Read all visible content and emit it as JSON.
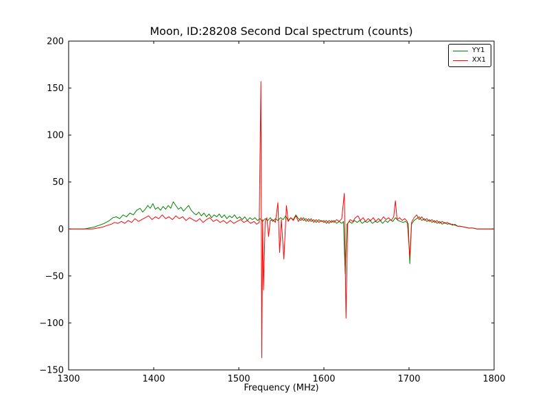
{
  "figure": {
    "title": "Moon, ID:28208 Second Dcal spectrum (counts)",
    "xlabel": "Frequency (MHz)"
  },
  "legend": {
    "position": "upper right",
    "entries": [
      {
        "label": "YY1",
        "color": "#008000"
      },
      {
        "label": "XX1",
        "color": "#ff0000"
      }
    ]
  },
  "chart_data": {
    "type": "line",
    "title": "Moon, ID:28208 Second Dcal spectrum (counts)",
    "xlabel": "Frequency (MHz)",
    "ylabel": "",
    "xlim": [
      1300,
      1800
    ],
    "ylim": [
      -150,
      200
    ],
    "xticks": [
      1300,
      1400,
      1500,
      1600,
      1700,
      1800
    ],
    "yticks": [
      -150,
      -100,
      -50,
      0,
      50,
      100,
      150,
      200
    ],
    "grid": false,
    "legend_position": "upper right",
    "background": "#ffffff",
    "axes_color": "#000000",
    "series": [
      {
        "name": "YY1",
        "color": "#008000",
        "points": [
          [
            1300,
            0
          ],
          [
            1310,
            0
          ],
          [
            1318,
            0
          ],
          [
            1324,
            1
          ],
          [
            1330,
            2
          ],
          [
            1336,
            4
          ],
          [
            1342,
            6
          ],
          [
            1348,
            9
          ],
          [
            1352,
            12
          ],
          [
            1356,
            13
          ],
          [
            1360,
            11
          ],
          [
            1364,
            15
          ],
          [
            1368,
            13
          ],
          [
            1372,
            17
          ],
          [
            1376,
            15
          ],
          [
            1380,
            20
          ],
          [
            1384,
            22
          ],
          [
            1387,
            18
          ],
          [
            1390,
            21
          ],
          [
            1393,
            25
          ],
          [
            1396,
            22
          ],
          [
            1399,
            27
          ],
          [
            1402,
            21
          ],
          [
            1405,
            23
          ],
          [
            1408,
            20
          ],
          [
            1411,
            24
          ],
          [
            1414,
            21
          ],
          [
            1417,
            25
          ],
          [
            1420,
            22
          ],
          [
            1423,
            29
          ],
          [
            1426,
            25
          ],
          [
            1429,
            21
          ],
          [
            1432,
            23
          ],
          [
            1435,
            19
          ],
          [
            1438,
            22
          ],
          [
            1441,
            25
          ],
          [
            1444,
            20
          ],
          [
            1447,
            17
          ],
          [
            1450,
            15
          ],
          [
            1453,
            18
          ],
          [
            1456,
            14
          ],
          [
            1459,
            17
          ],
          [
            1462,
            13
          ],
          [
            1465,
            16
          ],
          [
            1468,
            12
          ],
          [
            1471,
            15
          ],
          [
            1474,
            13
          ],
          [
            1477,
            16
          ],
          [
            1480,
            12
          ],
          [
            1483,
            15
          ],
          [
            1486,
            11
          ],
          [
            1489,
            14
          ],
          [
            1492,
            12
          ],
          [
            1495,
            15
          ],
          [
            1498,
            11
          ],
          [
            1501,
            13
          ],
          [
            1504,
            10
          ],
          [
            1507,
            13
          ],
          [
            1510,
            9
          ],
          [
            1513,
            12
          ],
          [
            1516,
            10
          ],
          [
            1519,
            12
          ],
          [
            1522,
            9
          ],
          [
            1525,
            11
          ],
          [
            1528,
            8
          ],
          [
            1531,
            11
          ],
          [
            1534,
            9
          ],
          [
            1537,
            12
          ],
          [
            1540,
            8
          ],
          [
            1543,
            11
          ],
          [
            1546,
            9
          ],
          [
            1549,
            12
          ],
          [
            1552,
            10
          ],
          [
            1555,
            14
          ],
          [
            1558,
            9
          ],
          [
            1561,
            12
          ],
          [
            1564,
            10
          ],
          [
            1567,
            15
          ],
          [
            1570,
            11
          ],
          [
            1573,
            9
          ],
          [
            1576,
            12
          ],
          [
            1579,
            8
          ],
          [
            1582,
            11
          ],
          [
            1585,
            8
          ],
          [
            1588,
            10
          ],
          [
            1591,
            7
          ],
          [
            1594,
            10
          ],
          [
            1597,
            8
          ],
          [
            1600,
            9
          ],
          [
            1603,
            6
          ],
          [
            1606,
            9
          ],
          [
            1609,
            7
          ],
          [
            1612,
            9
          ],
          [
            1615,
            6
          ],
          [
            1618,
            8
          ],
          [
            1621,
            6
          ],
          [
            1623,
            8
          ],
          [
            1625,
            -48
          ],
          [
            1627,
            5
          ],
          [
            1630,
            8
          ],
          [
            1633,
            6
          ],
          [
            1636,
            9
          ],
          [
            1639,
            7
          ],
          [
            1642,
            9
          ],
          [
            1645,
            6
          ],
          [
            1648,
            8
          ],
          [
            1651,
            7
          ],
          [
            1654,
            9
          ],
          [
            1657,
            6
          ],
          [
            1660,
            8
          ],
          [
            1663,
            7
          ],
          [
            1666,
            9
          ],
          [
            1669,
            6
          ],
          [
            1672,
            9
          ],
          [
            1675,
            7
          ],
          [
            1678,
            10
          ],
          [
            1681,
            8
          ],
          [
            1684,
            12
          ],
          [
            1687,
            9
          ],
          [
            1690,
            8
          ],
          [
            1693,
            7
          ],
          [
            1696,
            8
          ],
          [
            1699,
            6
          ],
          [
            1701,
            -37
          ],
          [
            1703,
            5
          ],
          [
            1706,
            9
          ],
          [
            1709,
            11
          ],
          [
            1712,
            13
          ],
          [
            1715,
            9
          ],
          [
            1718,
            11
          ],
          [
            1721,
            8
          ],
          [
            1724,
            10
          ],
          [
            1727,
            7
          ],
          [
            1730,
            9
          ],
          [
            1733,
            6
          ],
          [
            1736,
            8
          ],
          [
            1739,
            5
          ],
          [
            1742,
            7
          ],
          [
            1745,
            5
          ],
          [
            1748,
            6
          ],
          [
            1751,
            4
          ],
          [
            1754,
            5
          ],
          [
            1757,
            3
          ],
          [
            1760,
            3
          ],
          [
            1765,
            2
          ],
          [
            1770,
            1
          ],
          [
            1775,
            1
          ],
          [
            1780,
            0
          ],
          [
            1790,
            0
          ],
          [
            1800,
            0
          ]
        ]
      },
      {
        "name": "XX1",
        "color": "#ff0000",
        "points": [
          [
            1300,
            0
          ],
          [
            1310,
            0
          ],
          [
            1320,
            0
          ],
          [
            1328,
            0
          ],
          [
            1334,
            1
          ],
          [
            1340,
            2
          ],
          [
            1346,
            4
          ],
          [
            1350,
            5
          ],
          [
            1354,
            7
          ],
          [
            1358,
            6
          ],
          [
            1362,
            8
          ],
          [
            1366,
            6
          ],
          [
            1370,
            9
          ],
          [
            1374,
            7
          ],
          [
            1378,
            11
          ],
          [
            1382,
            8
          ],
          [
            1386,
            10
          ],
          [
            1390,
            12
          ],
          [
            1394,
            14
          ],
          [
            1398,
            10
          ],
          [
            1402,
            13
          ],
          [
            1406,
            11
          ],
          [
            1410,
            15
          ],
          [
            1414,
            11
          ],
          [
            1418,
            13
          ],
          [
            1422,
            10
          ],
          [
            1426,
            14
          ],
          [
            1430,
            11
          ],
          [
            1434,
            13
          ],
          [
            1438,
            9
          ],
          [
            1442,
            12
          ],
          [
            1446,
            10
          ],
          [
            1450,
            8
          ],
          [
            1454,
            11
          ],
          [
            1458,
            7
          ],
          [
            1462,
            10
          ],
          [
            1466,
            12
          ],
          [
            1470,
            8
          ],
          [
            1474,
            10
          ],
          [
            1478,
            7
          ],
          [
            1482,
            9
          ],
          [
            1486,
            6
          ],
          [
            1490,
            9
          ],
          [
            1494,
            6
          ],
          [
            1498,
            8
          ],
          [
            1502,
            10
          ],
          [
            1506,
            7
          ],
          [
            1510,
            9
          ],
          [
            1514,
            6
          ],
          [
            1518,
            8
          ],
          [
            1521,
            5
          ],
          [
            1524,
            7
          ],
          [
            1526,
            157
          ],
          [
            1527,
            -137
          ],
          [
            1528,
            10
          ],
          [
            1529,
            -65
          ],
          [
            1531,
            8
          ],
          [
            1533,
            12
          ],
          [
            1535,
            -8
          ],
          [
            1537,
            9
          ],
          [
            1540,
            10
          ],
          [
            1543,
            7
          ],
          [
            1546,
            28
          ],
          [
            1548,
            -25
          ],
          [
            1550,
            10
          ],
          [
            1553,
            -32
          ],
          [
            1556,
            25
          ],
          [
            1558,
            8
          ],
          [
            1561,
            12
          ],
          [
            1564,
            9
          ],
          [
            1567,
            14
          ],
          [
            1570,
            8
          ],
          [
            1573,
            12
          ],
          [
            1576,
            9
          ],
          [
            1579,
            11
          ],
          [
            1582,
            8
          ],
          [
            1585,
            11
          ],
          [
            1588,
            7
          ],
          [
            1591,
            10
          ],
          [
            1594,
            7
          ],
          [
            1597,
            9
          ],
          [
            1600,
            7
          ],
          [
            1603,
            9
          ],
          [
            1606,
            6
          ],
          [
            1609,
            9
          ],
          [
            1612,
            7
          ],
          [
            1615,
            10
          ],
          [
            1618,
            8
          ],
          [
            1621,
            11
          ],
          [
            1624,
            38
          ],
          [
            1626,
            -95
          ],
          [
            1628,
            6
          ],
          [
            1631,
            10
          ],
          [
            1634,
            8
          ],
          [
            1637,
            12
          ],
          [
            1640,
            14
          ],
          [
            1643,
            9
          ],
          [
            1646,
            12
          ],
          [
            1649,
            8
          ],
          [
            1652,
            11
          ],
          [
            1655,
            9
          ],
          [
            1658,
            12
          ],
          [
            1661,
            8
          ],
          [
            1664,
            11
          ],
          [
            1667,
            9
          ],
          [
            1670,
            13
          ],
          [
            1673,
            10
          ],
          [
            1676,
            12
          ],
          [
            1679,
            9
          ],
          [
            1682,
            13
          ],
          [
            1684,
            30
          ],
          [
            1686,
            10
          ],
          [
            1689,
            12
          ],
          [
            1692,
            9
          ],
          [
            1695,
            11
          ],
          [
            1698,
            8
          ],
          [
            1701,
            -30
          ],
          [
            1703,
            7
          ],
          [
            1706,
            12
          ],
          [
            1709,
            15
          ],
          [
            1712,
            10
          ],
          [
            1715,
            13
          ],
          [
            1718,
            9
          ],
          [
            1721,
            11
          ],
          [
            1724,
            8
          ],
          [
            1727,
            10
          ],
          [
            1730,
            7
          ],
          [
            1733,
            9
          ],
          [
            1736,
            6
          ],
          [
            1739,
            8
          ],
          [
            1742,
            6
          ],
          [
            1745,
            7
          ],
          [
            1748,
            5
          ],
          [
            1751,
            5
          ],
          [
            1754,
            4
          ],
          [
            1757,
            3
          ],
          [
            1760,
            3
          ],
          [
            1765,
            2
          ],
          [
            1770,
            1
          ],
          [
            1775,
            1
          ],
          [
            1780,
            0
          ],
          [
            1790,
            0
          ],
          [
            1800,
            0
          ]
        ]
      }
    ]
  }
}
